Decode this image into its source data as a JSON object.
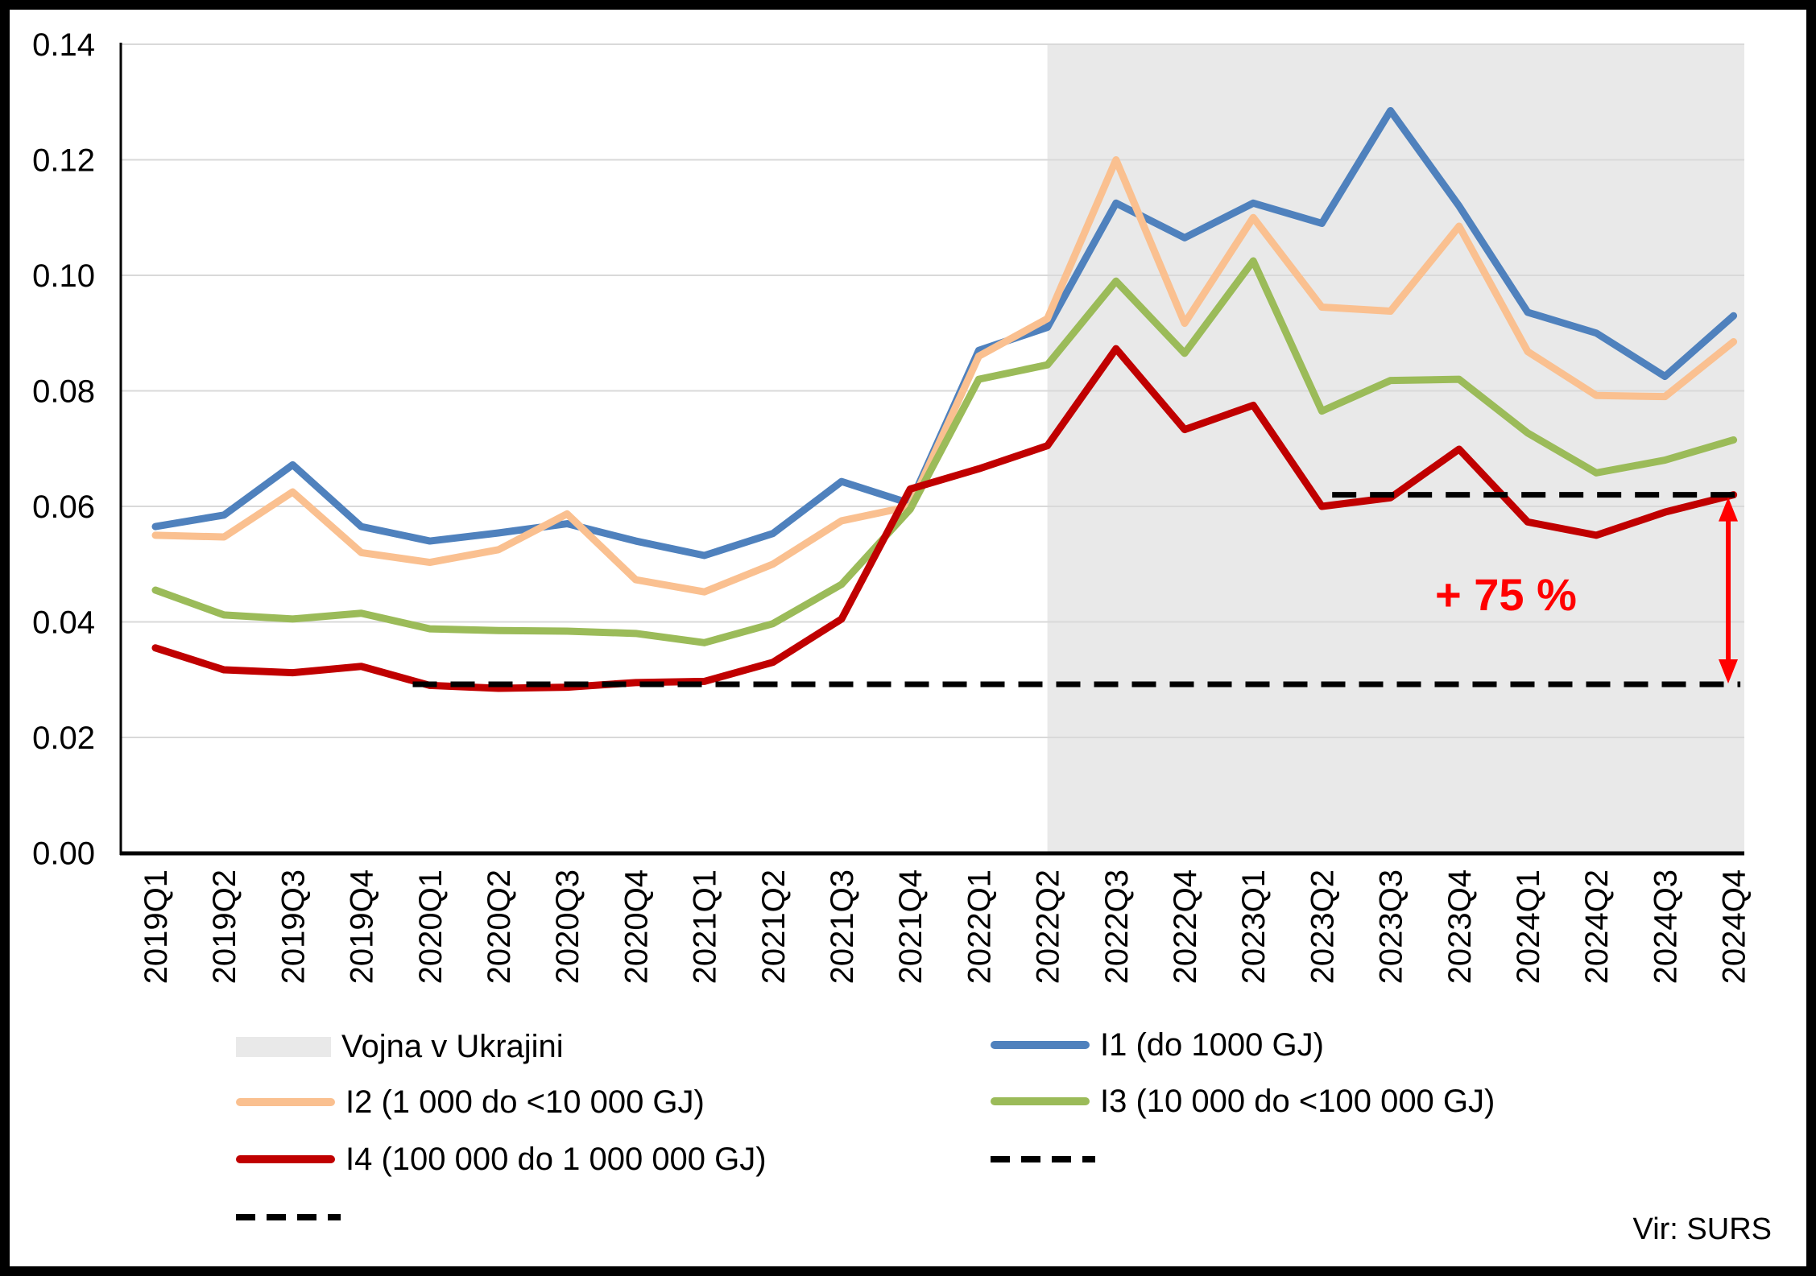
{
  "window": {
    "background": "#FFFFFF",
    "border_color": "#000000"
  },
  "chart_data": {
    "type": "line",
    "title": "",
    "xlabel": "",
    "ylabel": "",
    "ylim": [
      0,
      0.14
    ],
    "ytick_step": 0.02,
    "ytick_format": "two_decimals",
    "grid": true,
    "legend_position": "bottom",
    "categories": [
      "2019Q1",
      "2019Q2",
      "2019Q3",
      "2019Q4",
      "2020Q1",
      "2020Q2",
      "2020Q3",
      "2020Q4",
      "2021Q1",
      "2021Q2",
      "2021Q3",
      "2021Q4",
      "2022Q1",
      "2022Q2",
      "2022Q3",
      "2022Q4",
      "2023Q1",
      "2023Q2",
      "2023Q3",
      "2023Q4",
      "2024Q1",
      "2024Q2",
      "2024Q3",
      "2024Q4"
    ],
    "series": [
      {
        "id": "i1",
        "name": "I1 (do 1000 GJ)",
        "color": "#4F81BD",
        "values": [
          0.0565,
          0.0585,
          0.0672,
          0.0565,
          0.054,
          0.0554,
          0.057,
          0.054,
          0.0515,
          0.0553,
          0.0643,
          0.0605,
          0.087,
          0.091,
          0.1125,
          0.1065,
          0.1125,
          0.109,
          0.1285,
          0.112,
          0.0936,
          0.09,
          0.0825,
          0.093
        ]
      },
      {
        "id": "i2",
        "name": "I2 (1 000 do <10 000 GJ)",
        "color": "#FAC090",
        "values": [
          0.055,
          0.0547,
          0.0625,
          0.052,
          0.0503,
          0.0525,
          0.0587,
          0.0473,
          0.0452,
          0.05,
          0.0575,
          0.06,
          0.086,
          0.0925,
          0.12,
          0.0917,
          0.11,
          0.0945,
          0.0938,
          0.1085,
          0.0868,
          0.0792,
          0.079,
          0.0885
        ]
      },
      {
        "id": "i3",
        "name": "I3 (10 000 do <100 000 GJ)",
        "color": "#9BBB59",
        "values": [
          0.0455,
          0.0412,
          0.0405,
          0.0415,
          0.0388,
          0.0385,
          0.0384,
          0.038,
          0.0364,
          0.0397,
          0.0465,
          0.0595,
          0.082,
          0.0845,
          0.099,
          0.0865,
          0.1025,
          0.0765,
          0.0818,
          0.082,
          0.0727,
          0.0658,
          0.068,
          0.0715
        ]
      },
      {
        "id": "i4",
        "name": "I4 (100 000 do 1 000 000 GJ)",
        "color": "#C00000",
        "values": [
          0.0355,
          0.0317,
          0.0312,
          0.0323,
          0.029,
          0.0285,
          0.0287,
          0.0295,
          0.0297,
          0.033,
          0.0405,
          0.063,
          0.0665,
          0.0705,
          0.0873,
          0.0733,
          0.0775,
          0.06,
          0.0615,
          0.0699,
          0.0573,
          0.055,
          0.059,
          0.062
        ]
      }
    ],
    "reference_lines": [
      {
        "id": "dashed-reference-line-lower",
        "value": 0.0292,
        "from_index": 3.75,
        "to_index": 23.1,
        "color": "#000000",
        "style": "dashed"
      },
      {
        "id": "dashed-reference-line-upper",
        "value": 0.062,
        "from_index": 17.15,
        "to_index": 23.05,
        "color": "#000000",
        "style": "dashed"
      }
    ],
    "shaded_region": {
      "label": "Vojna v Ukrajini",
      "start_category": "2022Q2",
      "start_index": 13,
      "color": "#E9E9E9"
    },
    "annotation": {
      "text": "+ 75 %",
      "color": "#FF0000"
    },
    "arrow": {
      "from_value": 0.062,
      "to_value": 0.0292,
      "color": "#FF0000"
    },
    "colors": {
      "gridline": "#D9D9D9",
      "axis": "#000000"
    }
  },
  "legend": {
    "items": [
      {
        "label": "Vojna v Ukrajini",
        "swatch": "box",
        "color": "#E9E9E9"
      },
      {
        "label": "I2 (1 000 do <10 000 GJ)",
        "swatch": "line",
        "color": "#FAC090"
      },
      {
        "label": "I4 (100 000 do 1 000 000 GJ)",
        "swatch": "line",
        "color": "#C00000"
      },
      {
        "label": "",
        "swatch": "dashed",
        "color": "#000000"
      },
      {
        "label": "I1 (do 1000 GJ)",
        "swatch": "line",
        "color": "#4F81BD"
      },
      {
        "label": "I3 (10 000 do <100 000 GJ)",
        "swatch": "line",
        "color": "#9BBB59"
      },
      {
        "label": "",
        "swatch": "dashed",
        "color": "#000000"
      }
    ]
  },
  "source": {
    "label": "Vir: SURS"
  }
}
